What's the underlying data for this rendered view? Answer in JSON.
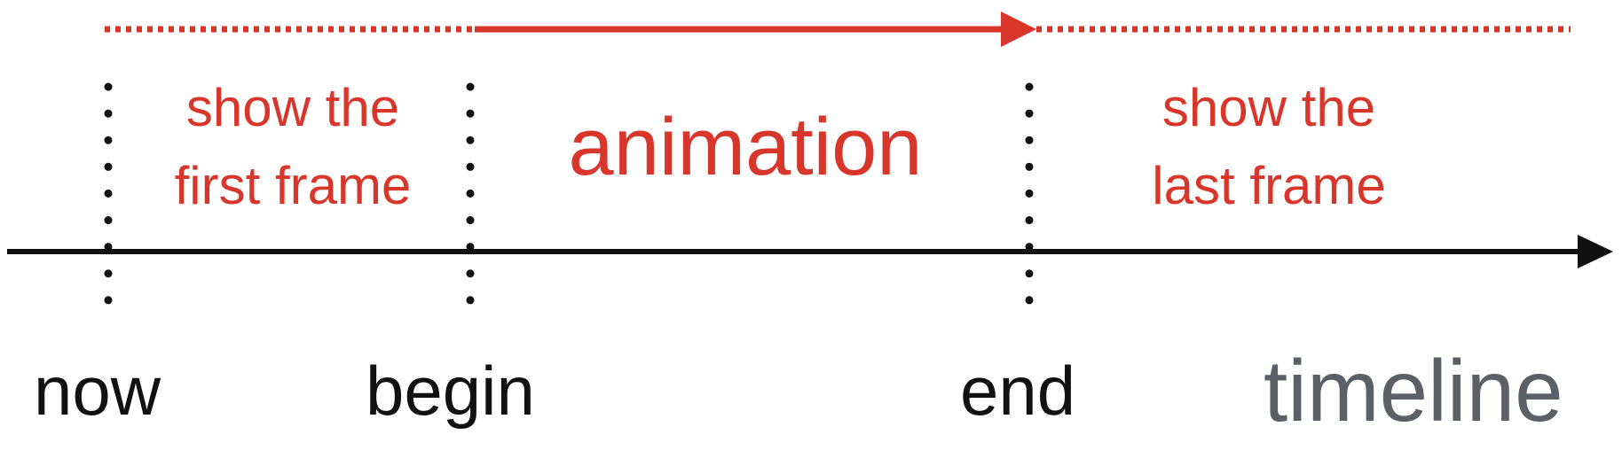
{
  "phases": {
    "before": {
      "line1": "show the",
      "line2": "first frame"
    },
    "during": {
      "label": "animation"
    },
    "after": {
      "line1": "show the",
      "line2": "last frame"
    }
  },
  "markers": {
    "now": "now",
    "begin": "begin",
    "end": "end"
  },
  "axis": {
    "title": "timeline"
  },
  "colors": {
    "accent": "#d9362b",
    "axis": "#111111",
    "title": "#5b5f66"
  }
}
